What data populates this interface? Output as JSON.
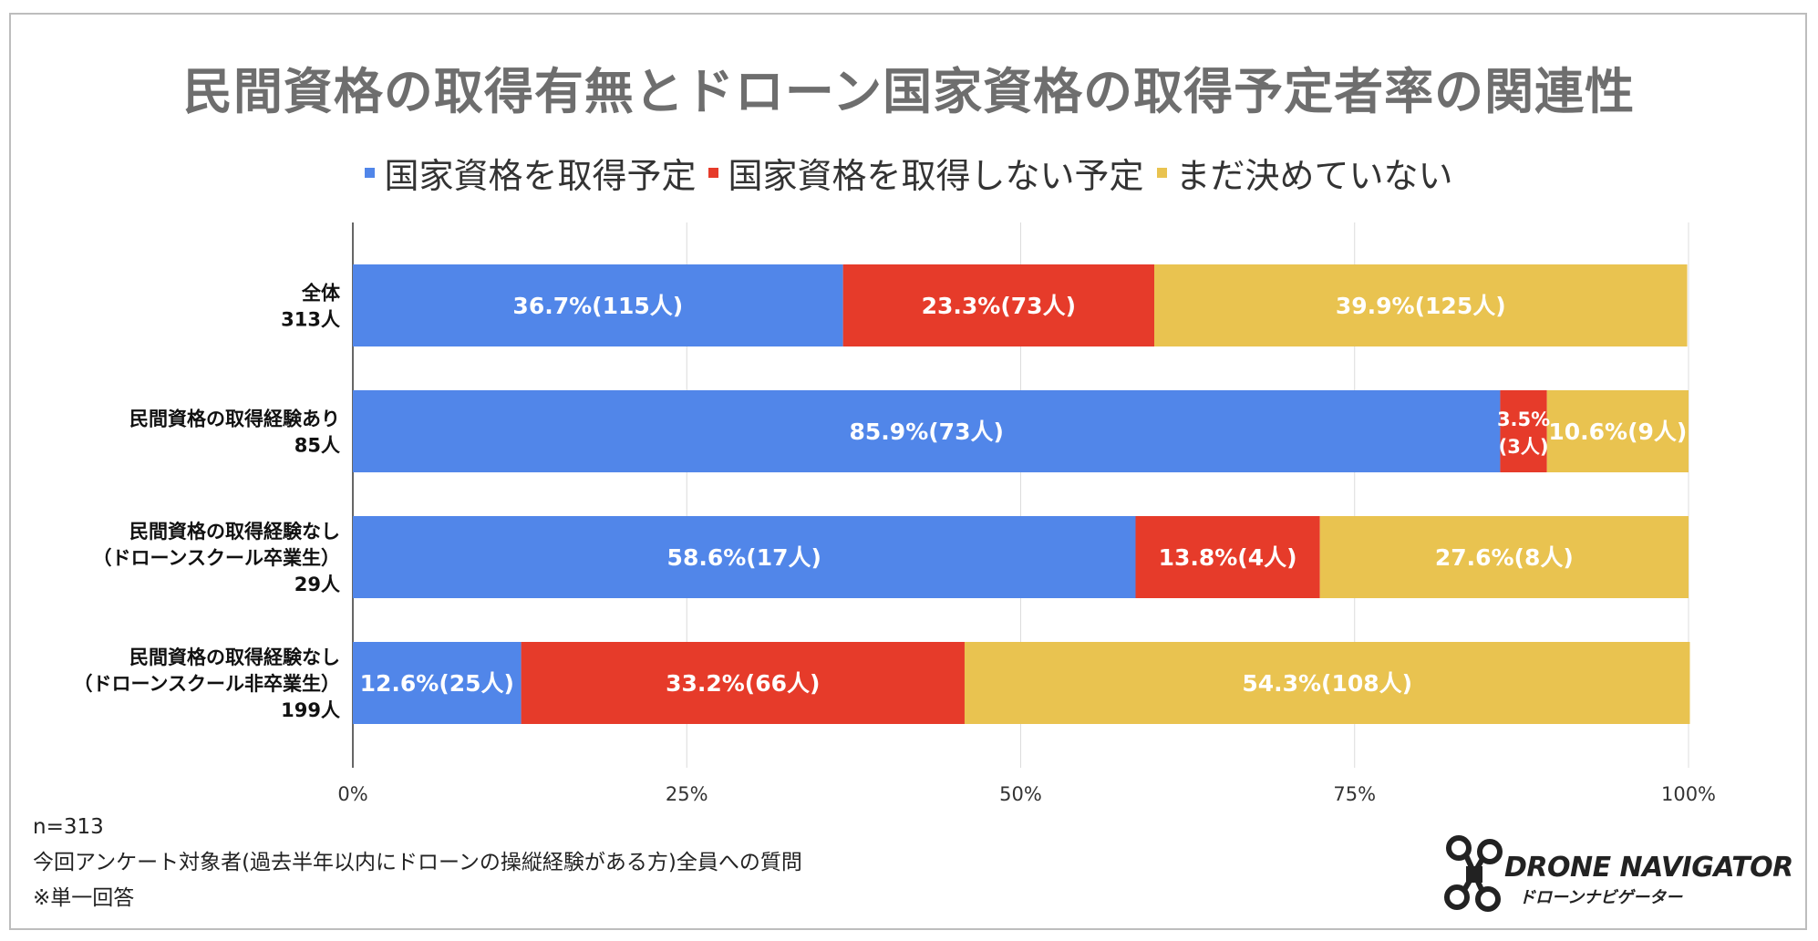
{
  "title": "民間資格の取得有無とドローン国家資格の取得予定者率の関連性",
  "legend": [
    {
      "label": "国家資格を取得予定",
      "color": "#5186e9"
    },
    {
      "label": "国家資格を取得しない予定",
      "color": "#e63b2a"
    },
    {
      "label": "まだ決めていない",
      "color": "#e9c350"
    }
  ],
  "chart_data": {
    "type": "bar",
    "orientation": "horizontal",
    "stacked": true,
    "percent_stacked": true,
    "categories": [
      [
        "全体",
        "313人"
      ],
      [
        "民間資格の取得経験あり",
        "85人"
      ],
      [
        "民間資格の取得経験なし",
        "（ドローンスクール卒業生）",
        "29人"
      ],
      [
        "民間資格の取得経験なし",
        "（ドローンスクール非卒業生）",
        "199人"
      ]
    ],
    "series": [
      {
        "name": "国家資格を取得予定",
        "color": "#5186e9",
        "values": [
          36.7,
          85.9,
          58.6,
          12.6
        ],
        "labels": [
          [
            "36.7%(115人)"
          ],
          [
            "85.9%(73人)"
          ],
          [
            "58.6%(17人)"
          ],
          [
            "12.6%(25人)"
          ]
        ]
      },
      {
        "name": "国家資格を取得しない予定",
        "color": "#e63b2a",
        "values": [
          23.3,
          3.5,
          13.8,
          33.2
        ],
        "labels": [
          [
            "23.3%(73人)"
          ],
          [
            "3.5%",
            "(3人)"
          ],
          [
            "13.8%(4人)"
          ],
          [
            "33.2%(66人)"
          ]
        ]
      },
      {
        "name": "まだ決めていない",
        "color": "#e9c350",
        "values": [
          39.9,
          10.6,
          27.6,
          54.3
        ],
        "labels": [
          [
            "39.9%(125人)"
          ],
          [
            "10.6%(9人)"
          ],
          [
            "27.6%(8人)"
          ],
          [
            "54.3%(108人)"
          ]
        ]
      }
    ],
    "xlim": [
      0,
      100
    ],
    "xticks": [
      0,
      25,
      50,
      75,
      100
    ],
    "xtick_labels": [
      "0%",
      "25%",
      "50%",
      "75%",
      "100%"
    ],
    "grid": "vertical",
    "legend_position": "top"
  },
  "notes": [
    "n=313",
    "今回アンケート対象者(過去半年以内にドローンの操縦経験がある方)全員への質問",
    "※単一回答"
  ],
  "logo": {
    "name": "DRONE NAVIGATOR",
    "sub": "ドローンナビゲーター"
  }
}
